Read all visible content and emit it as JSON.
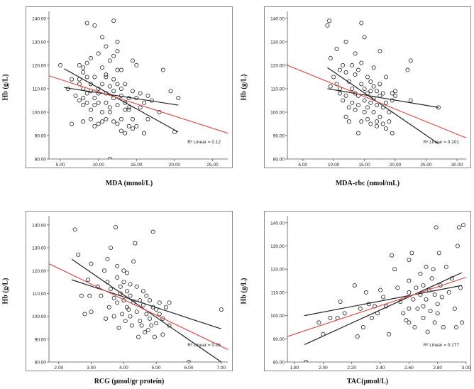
{
  "chart_data": [
    {
      "type": "scatter",
      "xlabel": "MDA (mmol/L)",
      "ylabel": "Hb (g/L)",
      "xlim": [
        3.5,
        27
      ],
      "ylim": [
        80,
        143
      ],
      "xticks": [
        "5.00",
        "10.00",
        "15.00",
        "20.00",
        "25.00"
      ],
      "yticks": [
        "80.00",
        "90.00",
        "100.00",
        "110.00",
        "120.00",
        "130.00",
        "140.00"
      ],
      "annotation": "R² Linear = 0.12",
      "fit_line": {
        "x": [
          3.5,
          27
        ],
        "y": [
          115.5,
          91
        ]
      },
      "ci_upper": {
        "x": [
          5.5,
          20.5
        ],
        "y": [
          110.5,
          103
        ]
      },
      "ci_lower": {
        "x": [
          5.5,
          20.5
        ],
        "y": [
          118.5,
          91.5
        ]
      },
      "points": [
        [
          5.0,
          120
        ],
        [
          6.0,
          110
        ],
        [
          6.5,
          114
        ],
        [
          6.5,
          95
        ],
        [
          7.0,
          107
        ],
        [
          7.5,
          120
        ],
        [
          7.5,
          114
        ],
        [
          7.5,
          112
        ],
        [
          7.5,
          105
        ],
        [
          8.0,
          117
        ],
        [
          8.0,
          110
        ],
        [
          8.0,
          106
        ],
        [
          8.0,
          103
        ],
        [
          8.0,
          96
        ],
        [
          8.0,
          119
        ],
        [
          8.5,
          121
        ],
        [
          8.5,
          115
        ],
        [
          8.5,
          108
        ],
        [
          8.5,
          104
        ],
        [
          8.5,
          138
        ],
        [
          9.0,
          112
        ],
        [
          9.0,
          109
        ],
        [
          9.0,
          101
        ],
        [
          9.0,
          97
        ],
        [
          9.0,
          123
        ],
        [
          9.5,
          115
        ],
        [
          9.5,
          106
        ],
        [
          9.5,
          103
        ],
        [
          9.5,
          94
        ],
        [
          9.5,
          137
        ],
        [
          10.0,
          125
        ],
        [
          10.0,
          110
        ],
        [
          10.0,
          108
        ],
        [
          10.0,
          104
        ],
        [
          10.0,
          95
        ],
        [
          10.5,
          119
        ],
        [
          10.5,
          112
        ],
        [
          10.5,
          100
        ],
        [
          10.5,
          96
        ],
        [
          10.5,
          132
        ],
        [
          11.0,
          128
        ],
        [
          11.0,
          116
        ],
        [
          11.0,
          108
        ],
        [
          11.0,
          104
        ],
        [
          11.0,
          97
        ],
        [
          11.0,
          115
        ],
        [
          11.5,
          122
        ],
        [
          11.5,
          111
        ],
        [
          11.5,
          102
        ],
        [
          11.5,
          100
        ],
        [
          11.5,
          80
        ],
        [
          12.0,
          139
        ],
        [
          12.0,
          124
        ],
        [
          12.0,
          114
        ],
        [
          12.0,
          109
        ],
        [
          12.0,
          96
        ],
        [
          12.0,
          106
        ],
        [
          12.5,
          126
        ],
        [
          12.5,
          118
        ],
        [
          12.5,
          112
        ],
        [
          12.5,
          103
        ],
        [
          12.5,
          95
        ],
        [
          12.5,
          130
        ],
        [
          13.0,
          118
        ],
        [
          13.0,
          110
        ],
        [
          13.0,
          107
        ],
        [
          13.0,
          97
        ],
        [
          13.0,
          92
        ],
        [
          13.5,
          112
        ],
        [
          13.5,
          104
        ],
        [
          13.5,
          101
        ],
        [
          13.5,
          91
        ],
        [
          14.0,
          106
        ],
        [
          14.0,
          101
        ],
        [
          14.0,
          94
        ],
        [
          14.0,
          102
        ],
        [
          14.5,
          122
        ],
        [
          14.5,
          109
        ],
        [
          14.5,
          97
        ],
        [
          14.5,
          93
        ],
        [
          15.0,
          120
        ],
        [
          15.0,
          106
        ],
        [
          15.0,
          94
        ],
        [
          15.5,
          108
        ],
        [
          15.5,
          102
        ],
        [
          16.0,
          104
        ],
        [
          16.0,
          91
        ],
        [
          16.5,
          97
        ],
        [
          16.5,
          107
        ],
        [
          17.0,
          105
        ],
        [
          18.0,
          100
        ],
        [
          18.5,
          118
        ],
        [
          19.5,
          109
        ],
        [
          20.5,
          106
        ],
        [
          20.0,
          91.5
        ]
      ]
    },
    {
      "type": "scatter",
      "xlabel": "MDA-rbc (nmol/mL)",
      "ylabel": "Hb (g/L)",
      "xlim": [
        2.5,
        31.5
      ],
      "ylim": [
        80,
        143
      ],
      "xticks": [
        "5.00",
        "10.00",
        "15.00",
        "20.00",
        "25.00",
        "30.00"
      ],
      "yticks": [
        "80.00",
        "90.00",
        "100.00",
        "110.00",
        "120.00",
        "130.00",
        "140.00"
      ],
      "annotation": "R² Linear = 0.101",
      "fit_line": {
        "x": [
          2.5,
          31.5
        ],
        "y": [
          120,
          89
        ]
      },
      "ci_upper": {
        "x": [
          9,
          27
        ],
        "y": [
          110,
          102
        ]
      },
      "ci_lower": {
        "x": [
          9,
          27
        ],
        "y": [
          119,
          86.5
        ]
      },
      "points": [
        [
          9.0,
          137
        ],
        [
          9.3,
          139
        ],
        [
          9.5,
          123
        ],
        [
          9.5,
          111
        ],
        [
          10.0,
          115
        ],
        [
          10.5,
          112
        ],
        [
          10.5,
          127
        ],
        [
          11.0,
          118
        ],
        [
          11.0,
          110
        ],
        [
          11.0,
          108
        ],
        [
          11.5,
          120
        ],
        [
          11.5,
          105
        ],
        [
          12.0,
          130
        ],
        [
          12.0,
          117
        ],
        [
          12.0,
          107
        ],
        [
          12.0,
          98
        ],
        [
          12.5,
          113
        ],
        [
          12.5,
          102
        ],
        [
          12.5,
          96
        ],
        [
          13.0,
          120
        ],
        [
          13.0,
          110
        ],
        [
          13.0,
          104
        ],
        [
          13.5,
          125
        ],
        [
          13.5,
          116
        ],
        [
          13.5,
          108
        ],
        [
          13.5,
          101
        ],
        [
          14.0,
          118
        ],
        [
          14.0,
          107
        ],
        [
          14.0,
          103
        ],
        [
          14.0,
          91
        ],
        [
          14.5,
          121
        ],
        [
          14.5,
          112
        ],
        [
          14.5,
          96
        ],
        [
          14.5,
          138
        ],
        [
          15.0,
          132
        ],
        [
          15.0,
          110
        ],
        [
          15.0,
          105
        ],
        [
          15.0,
          100
        ],
        [
          15.5,
          115
        ],
        [
          15.5,
          108
        ],
        [
          15.5,
          102
        ],
        [
          15.5,
          97
        ],
        [
          16.0,
          113
        ],
        [
          16.0,
          109
        ],
        [
          16.0,
          104
        ],
        [
          16.0,
          95
        ],
        [
          16.5,
          119
        ],
        [
          16.5,
          111
        ],
        [
          16.5,
          106
        ],
        [
          16.5,
          100
        ],
        [
          17.0,
          109
        ],
        [
          17.0,
          103
        ],
        [
          17.0,
          96
        ],
        [
          17.0,
          94
        ],
        [
          17.5,
          126
        ],
        [
          17.5,
          112
        ],
        [
          17.5,
          107
        ],
        [
          17.5,
          98
        ],
        [
          18.0,
          108
        ],
        [
          18.0,
          102
        ],
        [
          18.0,
          95
        ],
        [
          18.5,
          115
        ],
        [
          18.5,
          104
        ],
        [
          18.5,
          93
        ],
        [
          19.0,
          100
        ],
        [
          19.0,
          96
        ],
        [
          19.5,
          108
        ],
        [
          19.5,
          105
        ],
        [
          19.5,
          91
        ],
        [
          20.0,
          109
        ],
        [
          20.0,
          107
        ],
        [
          22.0,
          118
        ],
        [
          22.5,
          122
        ],
        [
          22.5,
          105
        ],
        [
          27.0,
          102
        ]
      ]
    },
    {
      "type": "scatter",
      "xlabel": "RCG (μmol/gr protein)",
      "ylabel": "Hb (g/L)",
      "xlim": [
        1.7,
        7.2
      ],
      "ylim": [
        80,
        144
      ],
      "xticks": [
        "2.00",
        "3.00",
        "4.00",
        "5.00",
        "6.00",
        "7.00"
      ],
      "yticks": [
        "80.00",
        "90.00",
        "100.00",
        "110.00",
        "120.00",
        "130.00",
        "140.00"
      ],
      "annotation": "R² Linear = 0.26",
      "fit_line": {
        "x": [
          1.7,
          7.2
        ],
        "y": [
          123,
          85.5
        ]
      },
      "ci_upper": {
        "x": [
          2.4,
          7.0
        ],
        "y": [
          116,
          94.5
        ]
      },
      "ci_lower": {
        "x": [
          2.4,
          7.0
        ],
        "y": [
          125,
          80
        ]
      },
      "points": [
        [
          2.5,
          138
        ],
        [
          2.6,
          127
        ],
        [
          2.7,
          109
        ],
        [
          2.8,
          101
        ],
        [
          2.9,
          116
        ],
        [
          2.95,
          109
        ],
        [
          3.0,
          123
        ],
        [
          3.0,
          102
        ],
        [
          3.2,
          113
        ],
        [
          3.3,
          109
        ],
        [
          3.4,
          120
        ],
        [
          3.45,
          99
        ],
        [
          3.5,
          125
        ],
        [
          3.5,
          115
        ],
        [
          3.55,
          104
        ],
        [
          3.6,
          130
        ],
        [
          3.6,
          112
        ],
        [
          3.7,
          108
        ],
        [
          3.7,
          100
        ],
        [
          3.75,
          139
        ],
        [
          3.8,
          122
        ],
        [
          3.8,
          117
        ],
        [
          3.8,
          106
        ],
        [
          3.85,
          95
        ],
        [
          3.9,
          113
        ],
        [
          3.9,
          110
        ],
        [
          3.95,
          101
        ],
        [
          4.0,
          120
        ],
        [
          4.0,
          115
        ],
        [
          4.0,
          107
        ],
        [
          4.05,
          98
        ],
        [
          4.1,
          119
        ],
        [
          4.1,
          111
        ],
        [
          4.1,
          104
        ],
        [
          4.15,
          103
        ],
        [
          4.2,
          114
        ],
        [
          4.2,
          109
        ],
        [
          4.2,
          100
        ],
        [
          4.25,
          96
        ],
        [
          4.3,
          124
        ],
        [
          4.3,
          106
        ],
        [
          4.35,
          132
        ],
        [
          4.4,
          113
        ],
        [
          4.4,
          102
        ],
        [
          4.45,
          91
        ],
        [
          4.5,
          107
        ],
        [
          4.5,
          98
        ],
        [
          4.55,
          96
        ],
        [
          4.6,
          111
        ],
        [
          4.6,
          105
        ],
        [
          4.65,
          93
        ],
        [
          4.7,
          109
        ],
        [
          4.7,
          101
        ],
        [
          4.75,
          94
        ],
        [
          4.8,
          107
        ],
        [
          4.8,
          99
        ],
        [
          4.85,
          96
        ],
        [
          4.9,
          137
        ],
        [
          4.9,
          104
        ],
        [
          4.95,
          91
        ],
        [
          5.0,
          103
        ],
        [
          5.0,
          97
        ],
        [
          5.1,
          101
        ],
        [
          5.1,
          106
        ],
        [
          5.2,
          99
        ],
        [
          5.2,
          92
        ],
        [
          5.3,
          104
        ],
        [
          5.4,
          96
        ],
        [
          5.4,
          106
        ],
        [
          6.0,
          80
        ],
        [
          7.0,
          103
        ]
      ]
    },
    {
      "type": "scatter",
      "xlabel": "TAC(μmol/L)",
      "ylabel": "Hb (g/L)",
      "xlim": [
        1.75,
        3.0
      ],
      "ylim": [
        80,
        143
      ],
      "xticks": [
        "1.80",
        "2.00",
        "2.20",
        "2.40",
        "2.60",
        "2.80",
        "3.00"
      ],
      "yticks": [
        "80.00",
        "90.00",
        "100.00",
        "110.00",
        "120.00",
        "130.00",
        "140.00"
      ],
      "annotation": "R² Linear = 0.177",
      "fit_line": {
        "x": [
          1.75,
          3.0
        ],
        "y": [
          91,
          116.5
        ]
      },
      "ci_upper": {
        "x": [
          1.87,
          2.97
        ],
        "y": [
          100,
          113
        ]
      },
      "ci_lower": {
        "x": [
          1.87,
          2.97
        ],
        "y": [
          87.5,
          118.5
        ]
      },
      "points": [
        [
          1.88,
          80
        ],
        [
          1.97,
          97
        ],
        [
          2.0,
          92
        ],
        [
          2.05,
          99
        ],
        [
          2.1,
          99
        ],
        [
          2.12,
          106
        ],
        [
          2.15,
          101
        ],
        [
          2.22,
          113
        ],
        [
          2.24,
          91
        ],
        [
          2.26,
          103
        ],
        [
          2.28,
          95
        ],
        [
          2.3,
          110
        ],
        [
          2.32,
          105
        ],
        [
          2.34,
          99
        ],
        [
          2.36,
          104
        ],
        [
          2.38,
          101
        ],
        [
          2.4,
          111
        ],
        [
          2.42,
          108
        ],
        [
          2.44,
          104
        ],
        [
          2.46,
          92
        ],
        [
          2.48,
          126
        ],
        [
          2.5,
          120
        ],
        [
          2.52,
          112
        ],
        [
          2.54,
          106
        ],
        [
          2.56,
          101
        ],
        [
          2.58,
          98
        ],
        [
          2.6,
          124
        ],
        [
          2.6,
          115
        ],
        [
          2.6,
          110
        ],
        [
          2.6,
          103
        ],
        [
          2.6,
          97
        ],
        [
          2.62,
          127
        ],
        [
          2.63,
          107
        ],
        [
          2.64,
          95
        ],
        [
          2.65,
          112
        ],
        [
          2.66,
          103
        ],
        [
          2.68,
          118
        ],
        [
          2.68,
          109
        ],
        [
          2.7,
          113
        ],
        [
          2.7,
          104
        ],
        [
          2.7,
          99
        ],
        [
          2.72,
          121
        ],
        [
          2.72,
          107
        ],
        [
          2.73,
          93
        ],
        [
          2.74,
          111
        ],
        [
          2.75,
          102
        ],
        [
          2.76,
          116
        ],
        [
          2.77,
          120
        ],
        [
          2.78,
          109
        ],
        [
          2.78,
          97
        ],
        [
          2.79,
          138
        ],
        [
          2.8,
          105
        ],
        [
          2.8,
          101
        ],
        [
          2.81,
          127
        ],
        [
          2.82,
          113
        ],
        [
          2.83,
          108
        ],
        [
          2.84,
          95
        ],
        [
          2.86,
          121
        ],
        [
          2.88,
          110
        ],
        [
          2.9,
          116
        ],
        [
          2.92,
          103
        ],
        [
          2.93,
          95
        ],
        [
          2.94,
          130
        ],
        [
          2.95,
          138
        ],
        [
          2.96,
          112
        ],
        [
          2.97,
          97
        ],
        [
          2.98,
          139
        ]
      ]
    }
  ]
}
